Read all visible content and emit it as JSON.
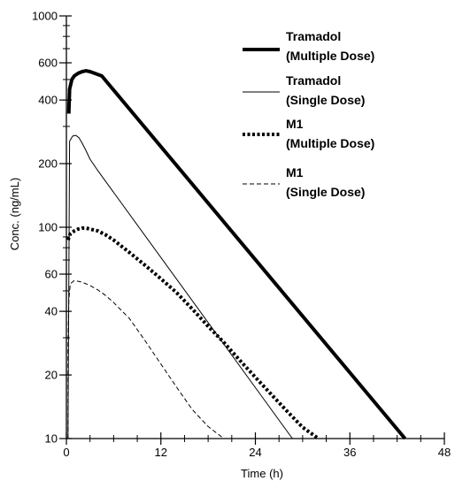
{
  "chart_data": {
    "type": "line",
    "xlabel": "Time (h)",
    "ylabel": "Conc. (ng/mL)",
    "xlim": [
      0,
      48
    ],
    "ylim": [
      10,
      1000
    ],
    "yscale": "log",
    "x_ticks": [
      "0",
      "12",
      "24",
      "36",
      "48"
    ],
    "y_ticks": [
      "10",
      "20",
      "40",
      "60",
      "100",
      "200",
      "400",
      "600",
      "1000"
    ],
    "grid": false,
    "legend_position": "top-right",
    "legend": [
      {
        "line1": "Tramadol",
        "line2": "(Multiple Dose)"
      },
      {
        "line1": "Tramadol",
        "line2": "(Single Dose)"
      },
      {
        "line1": "M1",
        "line2": "(Multiple Dose)"
      },
      {
        "line1": "M1",
        "line2": "(Single Dose)"
      }
    ],
    "series": [
      {
        "name": "Tramadol (Multiple Dose)",
        "style": "thick-solid",
        "x": [
          0.3,
          0.4,
          0.7,
          1.0,
          1.5,
          2.0,
          2.5,
          3.0,
          4.5,
          43.0
        ],
        "y": [
          345,
          450,
          500,
          520,
          535,
          545,
          550,
          545,
          520,
          10
        ]
      },
      {
        "name": "Tramadol (Single Dose)",
        "style": "thin-solid",
        "x": [
          0.2,
          0.4,
          0.8,
          1.2,
          1.6,
          2.0,
          2.5,
          3.0,
          4.0,
          28.7
        ],
        "y": [
          10,
          255,
          270,
          272,
          265,
          250,
          230,
          210,
          185,
          10
        ]
      },
      {
        "name": "M1 (Multiple Dose)",
        "style": "thick-dotted",
        "x": [
          0.2,
          0.5,
          1.0,
          1.5,
          2.0,
          2.5,
          3.0,
          4.0,
          5.0,
          6.0,
          8.0,
          10.0,
          12.0,
          14.0,
          16.0,
          18.0,
          20.0,
          22.0,
          24.0,
          26.0,
          28.0,
          30.0,
          32.0
        ],
        "y": [
          87,
          93,
          96,
          98,
          99,
          99,
          98,
          96,
          92,
          87,
          76,
          66,
          57,
          49,
          41,
          34,
          28.5,
          23.5,
          19.5,
          16.2,
          13.5,
          11.3,
          9.6
        ]
      },
      {
        "name": "M1 (Single Dose)",
        "style": "dashed",
        "x": [
          0.2,
          0.3,
          0.5,
          1.0,
          1.5,
          2.0,
          3.0,
          4.0,
          5.0,
          6.0,
          8.0,
          10.0,
          12.0,
          14.0,
          16.0,
          18.0,
          20.0
        ],
        "y": [
          27,
          45,
          54,
          56,
          55.5,
          55,
          53,
          50.5,
          47.5,
          44,
          37,
          29,
          22.5,
          17.5,
          13.7,
          11.4,
          9.6
        ]
      }
    ]
  }
}
